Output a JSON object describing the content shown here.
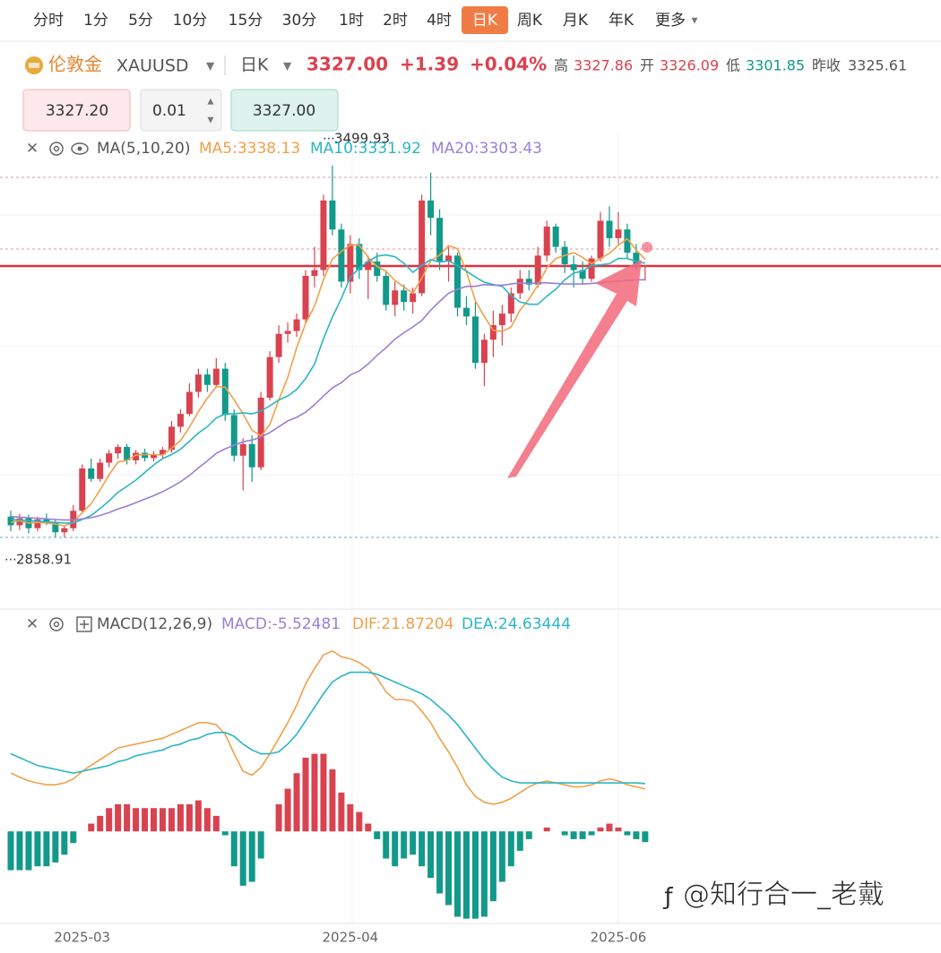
{
  "toolbar": {
    "periods": [
      "分时",
      "1分",
      "5分",
      "10分",
      "15分",
      "30分",
      "1时",
      "2时",
      "4时",
      "日K",
      "周K",
      "月K",
      "年K",
      "更多"
    ],
    "active": 9
  },
  "header": {
    "name": "伦敦金",
    "symbol": "XAUUSD",
    "period": "日K",
    "price": "3327.00",
    "change": "+1.39",
    "change_pct": "+0.04%",
    "stats": [
      {
        "label": "高",
        "value": "3327.86",
        "color": "#d8434f"
      },
      {
        "label": "开",
        "value": "3326.09",
        "color": "#d8434f"
      },
      {
        "label": "低",
        "value": "3301.85",
        "color": "#12998a"
      },
      {
        "label": "昨收",
        "value": "3325.61",
        "color": "#555555"
      }
    ]
  },
  "order": {
    "bid": "3327.20",
    "lots": "0.01",
    "ask": "3327.00"
  },
  "watermark": "@知行合一_老戴",
  "chart_data": [
    {
      "type": "candlestick",
      "indicator": "MA(5,10,20)",
      "up_color": "#d8434f",
      "down_color": "#12998a",
      "ylim": [
        2751,
        3554
      ],
      "categories": [
        null,
        null,
        null,
        null,
        null,
        null,
        null,
        null,
        "2025-03",
        null,
        null,
        null,
        null,
        null,
        null,
        null,
        null,
        null,
        null,
        null,
        null,
        null,
        null,
        null,
        null,
        null,
        null,
        null,
        null,
        null,
        null,
        null,
        null,
        null,
        null,
        null,
        null,
        null,
        "2025-04",
        null,
        null,
        null,
        null,
        null,
        null,
        null,
        null,
        null,
        null,
        null,
        null,
        null,
        null,
        null,
        null,
        null,
        null,
        null,
        null,
        null,
        null,
        null,
        null,
        null,
        null,
        null,
        null,
        null,
        "2025-06",
        null,
        null,
        null
      ],
      "open": [
        2895,
        2880,
        2892,
        2875,
        2890,
        2885,
        2868,
        2875,
        2905,
        2978,
        2960,
        2988,
        3004,
        3015,
        2992,
        3005,
        2996,
        3002,
        3010,
        3050,
        3072,
        3110,
        3140,
        3122,
        3150,
        3070,
        3000,
        3020,
        2980,
        3100,
        3170,
        3210,
        3215,
        3235,
        3310,
        3320,
        3440,
        3390,
        3300,
        3365,
        3320,
        3335,
        3310,
        3260,
        3285,
        3265,
        3280,
        3440,
        3410,
        3335,
        3345,
        3255,
        3240,
        3160,
        3200,
        3225,
        3245,
        3280,
        3305,
        3295,
        3345,
        3395,
        3360,
        3330,
        3320,
        3305,
        3340,
        3405,
        3375,
        3390,
        3350,
        3326.09
      ],
      "high": [
        2905,
        2900,
        2898,
        2895,
        2900,
        2890,
        2880,
        2915,
        2985,
        2995,
        2995,
        3010,
        3020,
        3020,
        3010,
        3012,
        3008,
        3015,
        3060,
        3080,
        3125,
        3150,
        3150,
        3168,
        3160,
        3080,
        3030,
        3035,
        3110,
        3180,
        3225,
        3230,
        3245,
        3320,
        3360,
        3450,
        3499.93,
        3400,
        3380,
        3375,
        3345,
        3350,
        3320,
        3300,
        3295,
        3290,
        3450,
        3488,
        3425,
        3360,
        3350,
        3275,
        3265,
        3210,
        3250,
        3260,
        3290,
        3320,
        3320,
        3360,
        3405,
        3400,
        3370,
        3345,
        3335,
        3345,
        3420,
        3430,
        3420,
        3400,
        3365,
        3327.86
      ],
      "low": [
        2870,
        2872,
        2866,
        2870,
        2880,
        2860,
        2858.91,
        2870,
        2900,
        2955,
        2955,
        2980,
        2995,
        2985,
        2985,
        2990,
        2990,
        2995,
        3005,
        3040,
        3068,
        3100,
        3110,
        3118,
        3060,
        2990,
        2940,
        2955,
        2975,
        3095,
        3160,
        3195,
        3205,
        3228,
        3290,
        3310,
        3380,
        3290,
        3280,
        3305,
        3270,
        3300,
        3250,
        3240,
        3250,
        3245,
        3275,
        3380,
        3320,
        3300,
        3240,
        3225,
        3150,
        3120,
        3170,
        3190,
        3230,
        3270,
        3285,
        3290,
        3335,
        3350,
        3315,
        3290,
        3295,
        3300,
        3335,
        3360,
        3365,
        3340,
        3320,
        3301.85
      ],
      "close": [
        2880,
        2892,
        2875,
        2890,
        2885,
        2868,
        2875,
        2905,
        2978,
        2960,
        2988,
        3004,
        3015,
        2992,
        3005,
        2996,
        3002,
        3010,
        3050,
        3072,
        3110,
        3140,
        3122,
        3150,
        3070,
        3000,
        3020,
        2980,
        3100,
        3170,
        3210,
        3215,
        3235,
        3310,
        3320,
        3440,
        3390,
        3300,
        3365,
        3320,
        3335,
        3310,
        3260,
        3285,
        3265,
        3280,
        3440,
        3410,
        3335,
        3345,
        3255,
        3240,
        3160,
        3200,
        3225,
        3245,
        3280,
        3305,
        3295,
        3345,
        3395,
        3360,
        3330,
        3320,
        3305,
        3340,
        3405,
        3375,
        3390,
        3350,
        3330,
        3327
      ],
      "series": [
        {
          "name": "MA5:3338.13",
          "color": "#f0a04b",
          "values": [
            2885,
            2888,
            2884,
            2885,
            2884,
            2882,
            2879,
            2885,
            2902,
            2917,
            2941,
            2967,
            2989,
            2992,
            3001,
            3002,
            3002,
            3001,
            3013,
            3026,
            3049,
            3076,
            3099,
            3119,
            3118,
            3096,
            3072,
            3044,
            3034,
            3054,
            3096,
            3135,
            3186,
            3228,
            3258,
            3304,
            3339,
            3352,
            3363,
            3363,
            3342,
            3326,
            3318,
            3302,
            3291,
            3280,
            3306,
            3336,
            3346,
            3362,
            3357,
            3317,
            3267,
            3240,
            3216,
            3214,
            3222,
            3251,
            3270,
            3294,
            3324,
            3340,
            3345,
            3350,
            3342,
            3331,
            3340,
            3349,
            3363,
            3374,
            3355,
            3338.13
          ]
        },
        {
          "name": "MA10:3331.92",
          "color": "#2bb5c4",
          "values": [
            2890,
            2889,
            2888,
            2887,
            2886,
            2885,
            2884,
            2884,
            2890,
            2897,
            2909,
            2922,
            2937,
            2947,
            2958,
            2971,
            2984,
            2995,
            3002,
            3011,
            3025,
            3039,
            3050,
            3065,
            3072,
            3072,
            3074,
            3072,
            3077,
            3086,
            3096,
            3103,
            3114,
            3133,
            3158,
            3202,
            3239,
            3271,
            3308,
            3323,
            3335,
            3344,
            3346,
            3343,
            3332,
            3316,
            3328,
            3338,
            3334,
            3336,
            3328,
            3318,
            3308,
            3299,
            3295,
            3292,
            3276,
            3265,
            3261,
            3261,
            3275,
            3287,
            3303,
            3315,
            3318,
            3328,
            3329,
            3331,
            3340,
            3340,
            3335,
            3331.92
          ]
        },
        {
          "name": "MA20:3303.43",
          "color": "#9b7fd4",
          "values": [
            2895,
            2894,
            2893,
            2892,
            2891,
            2890,
            2889,
            2889,
            2891,
            2893,
            2897,
            2902,
            2908,
            2913,
            2919,
            2925,
            2931,
            2938,
            2946,
            2955,
            2966,
            2979,
            2991,
            3004,
            3012,
            3018,
            3024,
            3027,
            3032,
            3040,
            3050,
            3060,
            3066,
            3075,
            3088,
            3103,
            3117,
            3126,
            3139,
            3146,
            3158,
            3173,
            3186,
            3201,
            3212,
            3222,
            3233,
            3251,
            3266,
            3280,
            3287,
            3292,
            3292,
            3295,
            3294,
            3294,
            3296,
            3298,
            3297,
            3298,
            3298,
            3297,
            3296,
            3296,
            3296,
            3297,
            3298,
            3300,
            3301,
            3302,
            3303,
            3303.43
          ]
        }
      ]
    },
    {
      "type": "macd",
      "indicator": "MACD(12,26,9)",
      "up_color": "#d8434f",
      "down_color": "#12998a",
      "ylim": [
        -47,
        110
      ],
      "series": [
        {
          "name": "MACD:-5.52481",
          "color": "#9b7fd4",
          "style": "bar",
          "values": [
            -20,
            -20,
            -20,
            -18,
            -18,
            -16,
            -12,
            -6,
            0,
            4,
            8,
            12,
            14,
            14,
            12,
            12,
            12,
            12,
            12,
            14,
            14,
            16,
            12,
            8,
            -2,
            -18,
            -28,
            -26,
            -14,
            0,
            14,
            22,
            30,
            38,
            40,
            40,
            32,
            20,
            14,
            10,
            4,
            -4,
            -14,
            -18,
            -14,
            -12,
            -18,
            -24,
            -32,
            -38,
            -44,
            -45,
            -45,
            -44,
            -36,
            -26,
            -18,
            -10,
            -4,
            0,
            2,
            0,
            -2,
            -4,
            -4,
            -2,
            2,
            4,
            2,
            -2,
            -4,
            -5.52481
          ]
        },
        {
          "name": "DIF:21.87204",
          "color": "#f0a04b",
          "style": "line",
          "values": [
            30,
            28,
            26,
            25,
            24,
            24,
            25,
            27,
            31,
            34,
            37,
            40,
            43,
            44,
            45,
            46,
            47,
            48,
            50,
            52,
            54,
            56,
            56,
            55,
            50,
            40,
            31,
            29,
            33,
            40,
            48,
            56,
            65,
            76,
            84,
            91,
            93,
            90,
            89,
            87,
            84,
            79,
            72,
            68,
            68,
            67,
            62,
            56,
            48,
            41,
            33,
            24,
            18,
            15,
            14,
            15,
            17,
            20,
            23,
            25,
            26,
            25,
            24,
            23,
            23,
            24,
            26,
            27,
            26,
            24,
            23,
            21.87204
          ]
        },
        {
          "name": "DEA:24.63444",
          "color": "#2bb5c4",
          "style": "line",
          "values": [
            40,
            38,
            36,
            34,
            33,
            32,
            31,
            30,
            31,
            32,
            33,
            34,
            36,
            37,
            39,
            40,
            41,
            42,
            44,
            45,
            47,
            48,
            50,
            51,
            51,
            49,
            45,
            42,
            40,
            40,
            41,
            45,
            50,
            57,
            64,
            71,
            77,
            80,
            82,
            82,
            82,
            81,
            79,
            77,
            75,
            73,
            71,
            68,
            64,
            60,
            55,
            49,
            43,
            37,
            32,
            28,
            26,
            25,
            25,
            25,
            25,
            25,
            25,
            25,
            25,
            25,
            25,
            25,
            25,
            25,
            25,
            24.63444
          ]
        }
      ]
    }
  ]
}
